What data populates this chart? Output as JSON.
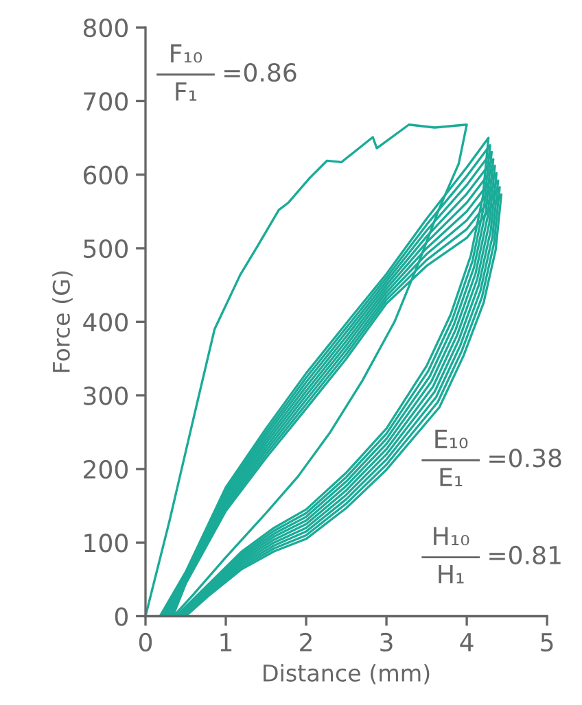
{
  "chart_data": {
    "type": "line",
    "xlabel": "Distance (mm)",
    "ylabel": "Force (G)",
    "xlim": [
      0,
      5
    ],
    "xticks": [
      0,
      1,
      2,
      3,
      4,
      5
    ],
    "ylim": [
      0,
      800
    ],
    "yticks": [
      0,
      100,
      200,
      300,
      400,
      500,
      600,
      700,
      800
    ],
    "grid": false,
    "legend": false,
    "marker": "none",
    "line_style": "solid",
    "annotations": [
      "F₁₀",
      "F₁",
      "=0.86",
      "E₁₀",
      "E₁",
      "=0.38",
      "H₁₀",
      "H₁",
      "=0.81"
    ],
    "series": [
      {
        "color": "#1aab98",
        "x": [
          0,
          0.3,
          0.6,
          0.86,
          1.18,
          1.39,
          1.66,
          1.78,
          2.04,
          2.26,
          2.44,
          2.83,
          2.88,
          3.28,
          3.6,
          4.0,
          3.9,
          3.65,
          3.4,
          3.1,
          2.7,
          2.3,
          1.9,
          1.5,
          1.0,
          0.6,
          0.35
        ],
        "values": [
          0,
          130,
          270,
          390,
          464,
          502,
          552,
          562,
          595,
          619,
          617,
          651,
          636,
          668,
          664,
          668,
          615,
          552,
          480,
          400,
          320,
          250,
          190,
          140,
          80,
          30,
          0
        ]
      },
      {
        "color": "#1aab98",
        "x": [
          0.18,
          0.5,
          1,
          1.5,
          2,
          2.5,
          3,
          3.5,
          4,
          4.27,
          4.2,
          4.05,
          3.8,
          3.5,
          3,
          2.5,
          2,
          1.6,
          1.2,
          0.8,
          0.38
        ],
        "values": [
          0,
          60,
          175,
          255,
          330,
          398,
          465,
          540,
          610,
          650,
          570,
          490,
          410,
          340,
          255,
          195,
          145,
          120,
          88,
          45,
          0
        ]
      },
      {
        "color": "#1aab98",
        "x": [
          0.2,
          0.5,
          1,
          1.5,
          2,
          2.5,
          3,
          3.5,
          4,
          4.29,
          4.22,
          4.07,
          3.82,
          3.52,
          3,
          2.5,
          2,
          1.6,
          1.2,
          0.8,
          0.4
        ],
        "values": [
          0,
          58,
          171,
          250,
          324,
          392,
          460,
          532,
          598,
          640,
          561,
          482,
          403,
          333,
          248,
          189,
          140,
          116,
          85,
          43,
          0
        ]
      },
      {
        "color": "#1aab98",
        "x": [
          0.22,
          0.5,
          1,
          1.5,
          2,
          2.5,
          3,
          3.5,
          4,
          4.31,
          4.24,
          4.09,
          3.84,
          3.54,
          3,
          2.5,
          2,
          1.6,
          1.2,
          0.8,
          0.41
        ],
        "values": [
          0,
          56,
          167,
          245,
          318,
          386,
          455,
          524,
          586,
          631,
          552,
          474,
          396,
          326,
          241,
          183,
          135,
          112,
          82,
          41,
          0
        ]
      },
      {
        "color": "#1aab98",
        "x": [
          0.24,
          0.5,
          1,
          1.5,
          2,
          2.5,
          3,
          3.5,
          4,
          4.33,
          4.26,
          4.11,
          3.86,
          3.56,
          3,
          2.5,
          2,
          1.6,
          1.2,
          0.8,
          0.43
        ],
        "values": [
          0,
          54,
          163,
          240,
          312,
          380,
          450,
          516,
          574,
          621,
          543,
          466,
          389,
          319,
          234,
          177,
          130,
          108,
          79,
          39,
          0
        ]
      },
      {
        "color": "#1aab98",
        "x": [
          0.26,
          0.5,
          1,
          1.5,
          2,
          2.5,
          3,
          3.5,
          4,
          4.35,
          4.28,
          4.13,
          3.88,
          3.58,
          3,
          2.5,
          2,
          1.6,
          1.2,
          0.8,
          0.44
        ],
        "values": [
          0,
          52,
          159,
          235,
          306,
          374,
          445,
          508,
          562,
          612,
          534,
          458,
          382,
          312,
          227,
          171,
          125,
          104,
          76,
          37,
          0
        ]
      },
      {
        "color": "#1aab98",
        "x": [
          0.28,
          0.5,
          1,
          1.5,
          2,
          2.5,
          3,
          3.5,
          4,
          4.37,
          4.3,
          4.15,
          3.9,
          3.6,
          3,
          2.5,
          2,
          1.6,
          1.2,
          0.8,
          0.46
        ],
        "values": [
          0,
          50,
          155,
          230,
          300,
          368,
          440,
          500,
          550,
          602,
          525,
          450,
          375,
          305,
          220,
          165,
          120,
          100,
          73,
          35,
          0
        ]
      },
      {
        "color": "#1aab98",
        "x": [
          0.3,
          0.5,
          1,
          1.5,
          2,
          2.5,
          3,
          3.5,
          4,
          4.39,
          4.32,
          4.17,
          3.92,
          3.62,
          3,
          2.5,
          2,
          1.6,
          1.2,
          0.8,
          0.47
        ],
        "values": [
          0,
          48,
          151,
          225,
          294,
          362,
          435,
          492,
          538,
          592,
          516,
          442,
          368,
          298,
          213,
          159,
          115,
          96,
          70,
          33,
          0
        ]
      },
      {
        "color": "#1aab98",
        "x": [
          0.32,
          0.5,
          1,
          1.5,
          2,
          2.5,
          3,
          3.5,
          4,
          4.41,
          4.34,
          4.19,
          3.94,
          3.64,
          3,
          2.5,
          2,
          1.6,
          1.2,
          0.8,
          0.49
        ],
        "values": [
          0,
          46,
          147,
          220,
          288,
          356,
          430,
          484,
          526,
          583,
          507,
          434,
          361,
          291,
          206,
          153,
          110,
          92,
          67,
          31,
          0
        ]
      },
      {
        "color": "#1aab98",
        "x": [
          0.34,
          0.5,
          1,
          1.5,
          2,
          2.5,
          3,
          3.5,
          4,
          4.43,
          4.36,
          4.21,
          3.96,
          3.66,
          3,
          2.5,
          2,
          1.6,
          1.2,
          0.8,
          0.5
        ],
        "values": [
          0,
          44,
          143,
          215,
          282,
          350,
          425,
          476,
          514,
          573,
          498,
          426,
          354,
          284,
          199,
          147,
          105,
          88,
          64,
          29,
          0
        ]
      }
    ]
  }
}
